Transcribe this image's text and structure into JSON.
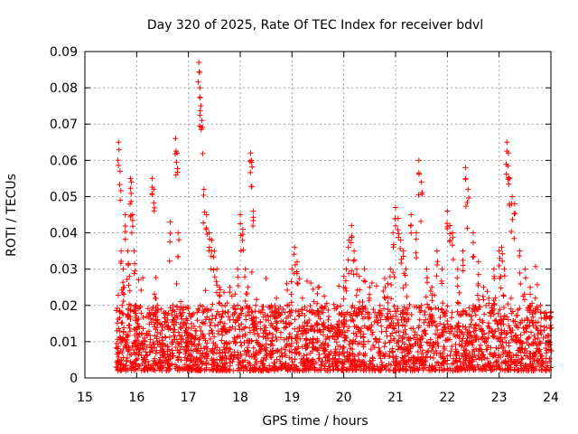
{
  "chart_data": {
    "type": "scatter",
    "title": "Day 320 of 2025, Rate Of TEC Index for receiver bdvl",
    "xlabel": "GPS time / hours",
    "ylabel": "ROTI / TECUs",
    "xlim": [
      15,
      24
    ],
    "ylim": [
      0,
      0.09
    ],
    "xticks": [
      "15",
      "16",
      "17",
      "18",
      "19",
      "20",
      "21",
      "22",
      "23",
      "24"
    ],
    "yticks": [
      "0",
      "0.01",
      "0.02",
      "0.03",
      "0.04",
      "0.05",
      "0.06",
      "0.07",
      "0.08",
      "0.09"
    ],
    "grid": true,
    "legend": "none",
    "marker": "plus",
    "series": [
      {
        "color": "#ff0000",
        "x": [
          15.62,
          15.65,
          15.68,
          15.7,
          15.72,
          15.74,
          15.76,
          15.78,
          15.8,
          15.83,
          15.86,
          15.88,
          15.9,
          15.92,
          15.95,
          15.98,
          16.0,
          16.02,
          16.05,
          16.1,
          16.15,
          16.2,
          16.25,
          16.3,
          16.33,
          16.36,
          16.4,
          16.45,
          16.5,
          16.55,
          16.6,
          16.65,
          16.7,
          16.75,
          16.78,
          16.8,
          16.85,
          16.9,
          16.95,
          17.0,
          17.05,
          17.1,
          17.15,
          17.2,
          17.22,
          17.24,
          17.26,
          17.3,
          17.35,
          17.4,
          17.45,
          17.5,
          17.55,
          17.6,
          17.65,
          17.7,
          17.8,
          17.9,
          17.95,
          18.0,
          18.05,
          18.1,
          18.15,
          18.2,
          18.22,
          18.25,
          18.3,
          18.4,
          18.5,
          18.6,
          18.7,
          18.8,
          18.9,
          19.0,
          19.05,
          19.1,
          19.2,
          19.3,
          19.4,
          19.5,
          19.6,
          19.7,
          19.8,
          19.9,
          20.0,
          20.05,
          20.1,
          20.15,
          20.2,
          20.25,
          20.3,
          20.4,
          20.5,
          20.6,
          20.7,
          20.8,
          20.85,
          20.9,
          20.95,
          21.0,
          21.05,
          21.1,
          21.15,
          21.2,
          21.3,
          21.4,
          21.45,
          21.5,
          21.6,
          21.7,
          21.8,
          21.9,
          22.0,
          22.05,
          22.1,
          22.2,
          22.3,
          22.35,
          22.4,
          22.5,
          22.6,
          22.7,
          22.8,
          22.9,
          23.0,
          23.05,
          23.1,
          23.15,
          23.18,
          23.2,
          23.25,
          23.3,
          23.4,
          23.5,
          23.6,
          23.7,
          23.8,
          23.9,
          24.0
        ],
        "y": [
          0.013,
          0.065,
          0.057,
          0.035,
          0.02,
          0.03,
          0.025,
          0.045,
          0.012,
          0.035,
          0.028,
          0.055,
          0.054,
          0.045,
          0.035,
          0.02,
          0.016,
          0.015,
          0.014,
          0.012,
          0.011,
          0.012,
          0.018,
          0.055,
          0.052,
          0.022,
          0.02,
          0.015,
          0.014,
          0.018,
          0.016,
          0.043,
          0.02,
          0.066,
          0.062,
          0.04,
          0.021,
          0.018,
          0.015,
          0.012,
          0.01,
          0.011,
          0.013,
          0.087,
          0.08,
          0.075,
          0.071,
          0.052,
          0.045,
          0.04,
          0.038,
          0.035,
          0.03,
          0.025,
          0.02,
          0.015,
          0.016,
          0.018,
          0.03,
          0.045,
          0.041,
          0.03,
          0.025,
          0.062,
          0.06,
          0.046,
          0.02,
          0.018,
          0.016,
          0.02,
          0.022,
          0.018,
          0.026,
          0.03,
          0.036,
          0.032,
          0.022,
          0.015,
          0.014,
          0.025,
          0.018,
          0.016,
          0.014,
          0.012,
          0.028,
          0.03,
          0.038,
          0.042,
          0.035,
          0.03,
          0.028,
          0.03,
          0.025,
          0.018,
          0.02,
          0.025,
          0.026,
          0.03,
          0.04,
          0.047,
          0.044,
          0.038,
          0.035,
          0.03,
          0.045,
          0.04,
          0.06,
          0.054,
          0.03,
          0.025,
          0.035,
          0.03,
          0.046,
          0.042,
          0.04,
          0.03,
          0.035,
          0.058,
          0.052,
          0.04,
          0.032,
          0.025,
          0.022,
          0.03,
          0.035,
          0.036,
          0.03,
          0.065,
          0.062,
          0.055,
          0.05,
          0.048,
          0.035,
          0.03,
          0.025,
          0.022,
          0.02,
          0.018,
          0.018
        ]
      }
    ],
    "noise_band": {
      "x_start": 15.6,
      "x_end": 24.0,
      "y_low": 0.002,
      "y_high": 0.02
    }
  }
}
